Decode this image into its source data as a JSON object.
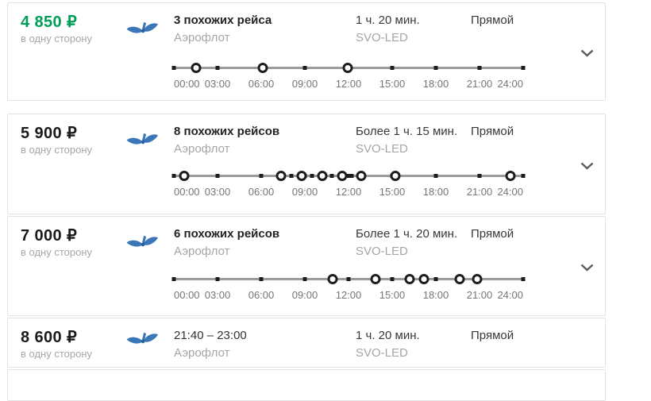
{
  "colors": {
    "best_price_green": "#009d58",
    "regular_price_black": "#1a1a1a",
    "muted_gray": "#a6a6a6",
    "timeline_track": "#9b9b9b",
    "timeline_marker": "#1d1d1d",
    "card_border": "#e3e3e3",
    "aeroflot_blue": "#3a76b8"
  },
  "timeline_labels": [
    "00:00",
    "03:00",
    "06:00",
    "09:00",
    "12:00",
    "15:00",
    "18:00",
    "21:00",
    "24:00"
  ],
  "timeline_grid": [
    0,
    0.125,
    0.25,
    0.375,
    0.5,
    0.625,
    0.75,
    0.875,
    1
  ],
  "cards": [
    {
      "price": "4 850 ₽",
      "price_hex": "#009d58",
      "fare_note": "в одну сторону",
      "title": "3 похожих рейса",
      "airline": "Аэрофлот",
      "logo_icon": "aeroflot-logo",
      "duration": "1 ч. 20 мин.",
      "route": "SVO-LED",
      "direct": "Прямой",
      "timeline": {
        "dots": [
          0.064,
          0.255,
          0.498
        ],
        "extra_ticks": []
      }
    },
    {
      "price": "5 900 ₽",
      "price_hex": "#1a1a1a",
      "fare_note": "в одну сторону",
      "title": "8 похожих рейсов",
      "airline": "Аэрофлот",
      "logo_icon": "aeroflot-logo",
      "duration": "Более 1 ч. 15 мин.",
      "route": "SVO-LED",
      "direct": "Прямой",
      "timeline": {
        "dots": [
          0.03,
          0.307,
          0.366,
          0.425,
          0.482,
          0.536,
          0.634,
          0.964
        ],
        "extra_ticks": [
          0.336,
          0.395,
          0.452,
          0.509
        ]
      }
    },
    {
      "price": "7 000 ₽",
      "price_hex": "#1a1a1a",
      "fare_note": "в одну сторону",
      "title": "6 похожих рейсов",
      "airline": "Аэрофлот",
      "logo_icon": "aeroflot-logo",
      "duration": "Более 1 ч. 20 мин.",
      "route": "SVO-LED",
      "direct": "Прямой",
      "timeline": {
        "dots": [
          0.455,
          0.577,
          0.675,
          0.716,
          0.818,
          0.868
        ],
        "extra_ticks": []
      }
    },
    {
      "price": "8 600 ₽",
      "price_hex": "#1a1a1a",
      "fare_note": "в одну сторону",
      "title": "21:40 – 23:00",
      "airline": "Аэрофлот",
      "logo_icon": "aeroflot-logo",
      "duration": "1 ч. 20 мин.",
      "route": "SVO-LED",
      "direct": "Прямой",
      "timeline": null
    }
  ]
}
